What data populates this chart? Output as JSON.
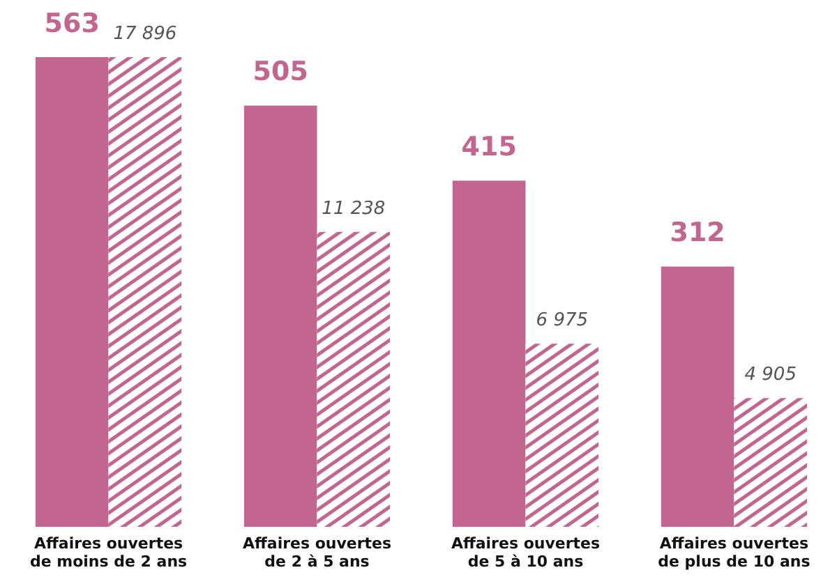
{
  "chart_data": {
    "type": "bar",
    "categories": [
      "Affaires ouvertes de moins de 2 ans",
      "Affaires ouvertes de 2 à 5 ans",
      "Affaires ouvertes de 5 à 10 ans",
      "Affaires ouvertes de plus de 10 ans"
    ],
    "series": [
      {
        "color": "#c2668f",
        "values": [
          563,
          505,
          415,
          312
        ],
        "value_labels": [
          "563",
          "505",
          "415",
          "312"
        ]
      },
      {
        "color": "#c2668f",
        "axis": "y2",
        "values": [
          17896,
          11238,
          6975,
          4905
        ],
        "value_labels": [
          "17 896",
          "11 238",
          "6 975",
          "4 905"
        ]
      }
    ],
    "tick_labels": "x"
  }
}
